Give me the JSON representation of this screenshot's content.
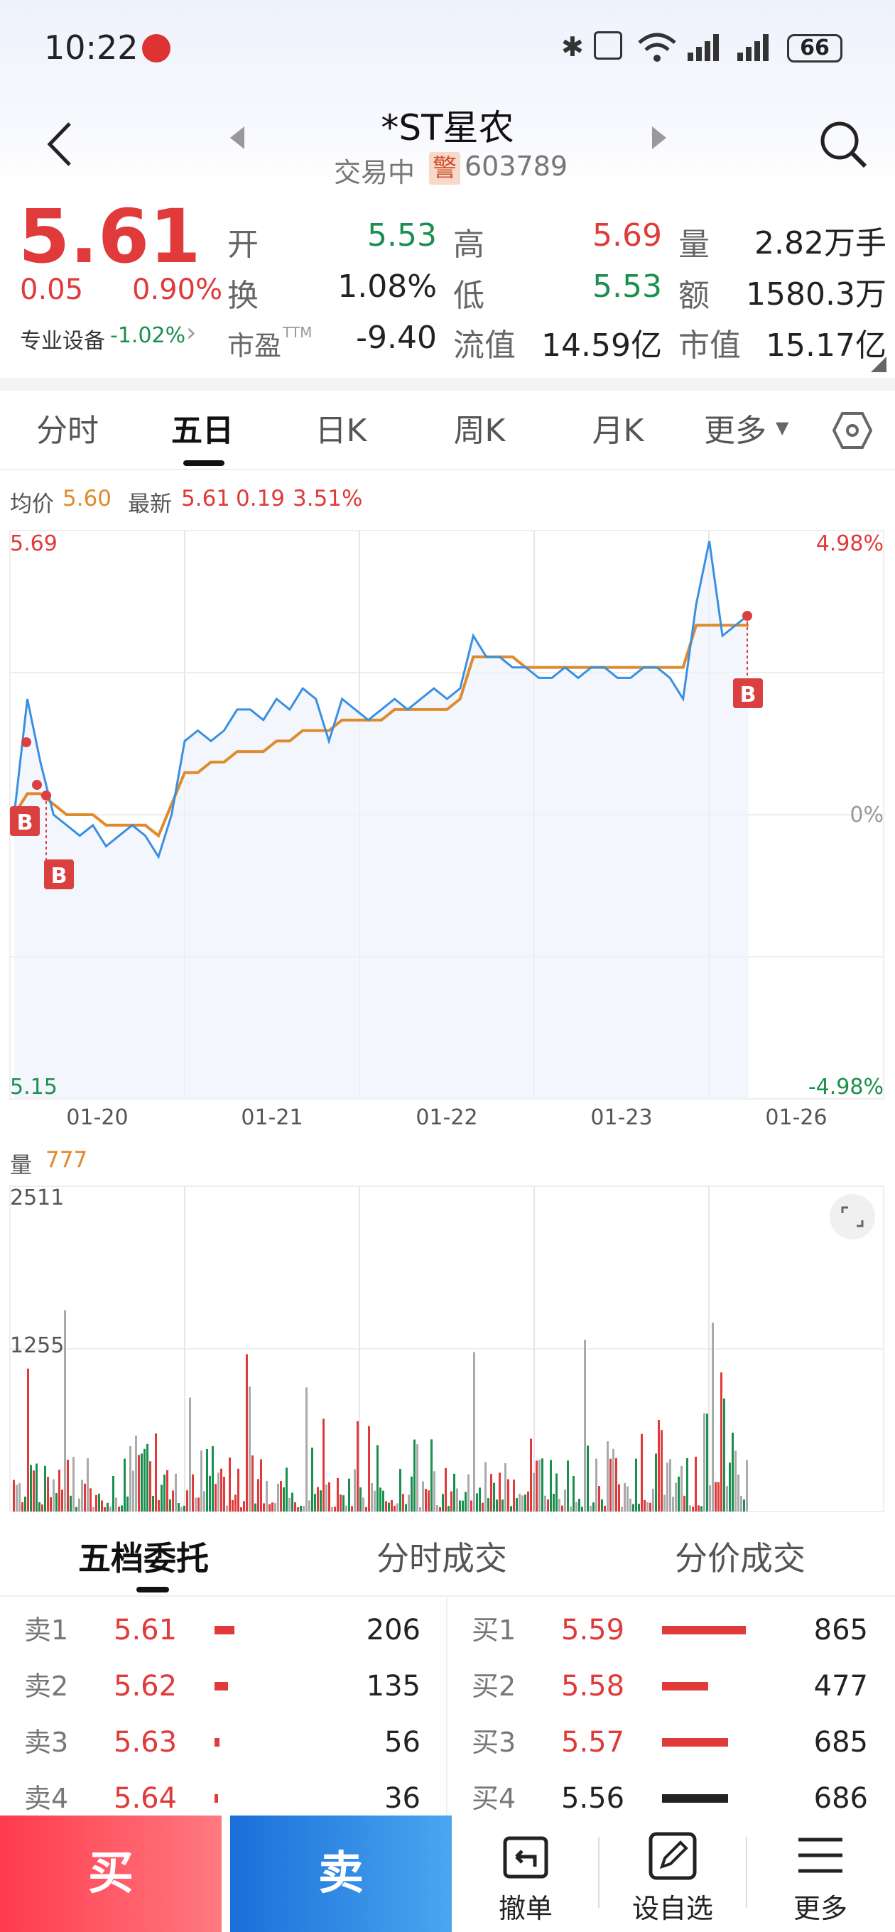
{
  "status": {
    "time": "10:22",
    "battery": "66"
  },
  "header": {
    "title": "*ST星农",
    "trading_status": "交易中",
    "warn_badge": "警",
    "code": "603789"
  },
  "quote": {
    "price": "5.61",
    "change": "0.05",
    "change_pct": "0.90%",
    "sector": "专业设备",
    "sector_change": "-1.02%",
    "open_label": "开",
    "open": "5.53",
    "high_label": "高",
    "high": "5.69",
    "vol_label": "量",
    "vol": "2.82万手",
    "turnover_label": "换",
    "turnover": "1.08%",
    "low_label": "低",
    "low": "5.53",
    "amount_label": "额",
    "amount": "1580.3万",
    "pe_label": "市盈",
    "pe_suffix": "TTM",
    "pe": "-9.40",
    "float_label": "流值",
    "float_cap": "14.59亿",
    "mcap_label": "市值",
    "mcap": "15.17亿"
  },
  "tabs": [
    "分时",
    "五日",
    "日K",
    "周K",
    "月K",
    "更多"
  ],
  "chart_info": {
    "avg_label": "均价",
    "avg": "5.60",
    "latest_label": "最新",
    "latest": "5.61",
    "latest_chg": "0.19",
    "latest_pct": "3.51%"
  },
  "chart_data": {
    "type": "line",
    "ymax_label": "5.69",
    "ymin_label": "5.15",
    "pct_top": "4.98%",
    "pct_mid": "0%",
    "pct_bottom": "-4.98%",
    "dates": [
      "01-20",
      "01-21",
      "01-22",
      "01-23",
      "01-26"
    ],
    "ylim": [
      5.15,
      5.69
    ],
    "price_series": [
      5.42,
      5.53,
      5.47,
      5.42,
      5.41,
      5.4,
      5.41,
      5.39,
      5.4,
      5.41,
      5.4,
      5.38,
      5.42,
      5.49,
      5.5,
      5.49,
      5.5,
      5.52,
      5.52,
      5.51,
      5.53,
      5.52,
      5.54,
      5.53,
      5.49,
      5.53,
      5.52,
      5.51,
      5.52,
      5.53,
      5.52,
      5.53,
      5.54,
      5.53,
      5.54,
      5.59,
      5.57,
      5.57,
      5.56,
      5.56,
      5.55,
      5.55,
      5.56,
      5.55,
      5.56,
      5.56,
      5.55,
      5.55,
      5.56,
      5.56,
      5.55,
      5.53,
      5.62,
      5.68,
      5.59,
      5.6,
      5.61
    ],
    "avg_series": [
      5.42,
      5.44,
      5.44,
      5.43,
      5.42,
      5.42,
      5.42,
      5.41,
      5.41,
      5.41,
      5.41,
      5.4,
      5.43,
      5.46,
      5.46,
      5.47,
      5.47,
      5.48,
      5.48,
      5.48,
      5.49,
      5.49,
      5.5,
      5.5,
      5.5,
      5.51,
      5.51,
      5.51,
      5.51,
      5.52,
      5.52,
      5.52,
      5.52,
      5.52,
      5.53,
      5.57,
      5.57,
      5.57,
      5.57,
      5.56,
      5.56,
      5.56,
      5.56,
      5.56,
      5.56,
      5.56,
      5.56,
      5.56,
      5.56,
      5.56,
      5.56,
      5.56,
      5.6,
      5.6,
      5.6,
      5.6,
      5.6
    ],
    "volume_label": "量",
    "volume_value": "777",
    "vol_max_label": "2511",
    "vol_mid_label": "1255"
  },
  "book_tabs": [
    "五档委托",
    "分时成交",
    "分价成交"
  ],
  "sells": [
    {
      "label": "卖1",
      "price": "5.61",
      "qty": "206",
      "bar": 0.24
    },
    {
      "label": "卖2",
      "price": "5.62",
      "qty": "135",
      "bar": 0.16
    },
    {
      "label": "卖3",
      "price": "5.63",
      "qty": "56",
      "bar": 0.06
    },
    {
      "label": "卖4",
      "price": "5.64",
      "qty": "36",
      "bar": 0.04
    }
  ],
  "buys": [
    {
      "label": "买1",
      "price": "5.59",
      "qty": "865",
      "bar": 1.0
    },
    {
      "label": "买2",
      "price": "5.58",
      "qty": "477",
      "bar": 0.55
    },
    {
      "label": "买3",
      "price": "5.57",
      "qty": "685",
      "bar": 0.79
    },
    {
      "label": "买4",
      "price": "5.56",
      "qty": "686",
      "bar": 0.79
    }
  ],
  "bottom": {
    "buy": "买",
    "sell": "卖",
    "cancel": "撤单",
    "watchlist": "设自选",
    "more": "更多"
  },
  "colors": {
    "up": "#e03a3a",
    "down": "#1a8f4e",
    "line": "#3a8fe0",
    "avg": "#e08a2e"
  }
}
